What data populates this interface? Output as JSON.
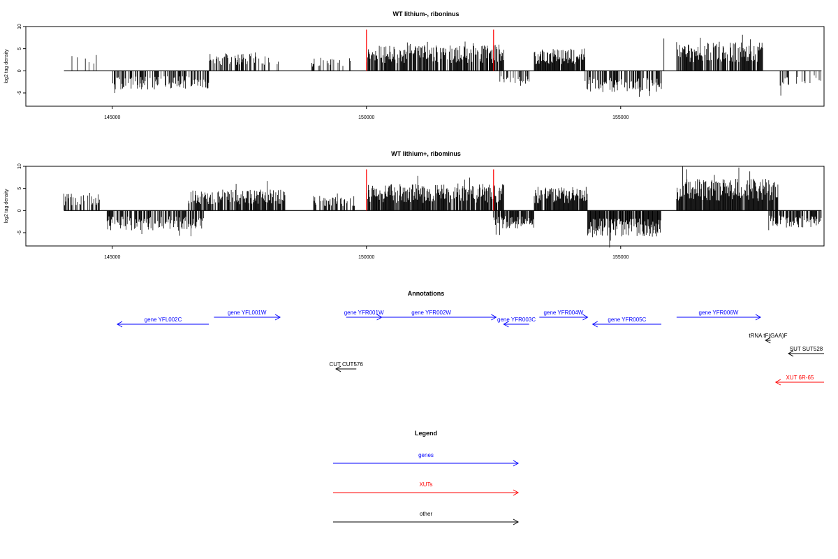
{
  "colors": {
    "genes": "#0000ff",
    "xuts": "#ff0000",
    "other": "#000000",
    "marker": "#ff0000"
  },
  "chart_data": [
    {
      "type": "bar",
      "title": "WT lithium-, riboninus",
      "ylabel": "log2 tag density",
      "xlim": [
        143300,
        159000
      ],
      "ylim": [
        -8,
        10
      ],
      "xticks": [
        145000,
        150000,
        155000
      ],
      "yticks": [
        10,
        5,
        0,
        -5
      ],
      "grid": false,
      "markers_x": [
        150000,
        152500
      ],
      "regions": [
        {
          "from": 144050,
          "to": 144700,
          "amp": 3.0,
          "density": 0.1
        },
        {
          "from": 145000,
          "to": 146900,
          "amp": -3.5,
          "density": 0.6
        },
        {
          "from": 146900,
          "to": 148300,
          "amp": 3.5,
          "density": 0.55
        },
        {
          "from": 148900,
          "to": 149700,
          "amp": 2.5,
          "density": 0.3
        },
        {
          "from": 150000,
          "to": 152700,
          "amp": 4.8,
          "density": 0.8
        },
        {
          "from": 152600,
          "to": 153200,
          "amp": -2.5,
          "density": 0.5
        },
        {
          "from": 153300,
          "to": 154300,
          "amp": 4.2,
          "density": 0.9
        },
        {
          "from": 154300,
          "to": 155800,
          "amp": -4.0,
          "density": 0.7
        },
        {
          "from": 156100,
          "to": 157800,
          "amp": 5.5,
          "density": 0.8
        },
        {
          "from": 158100,
          "to": 158950,
          "amp": -2.8,
          "density": 0.2
        }
      ],
      "spikes": [
        {
          "x": 155850,
          "v": 7.3
        },
        {
          "x": 158150,
          "v": -5.6
        },
        {
          "x": 145050,
          "v": -5.0
        },
        {
          "x": 151940,
          "v": 6.6
        }
      ]
    },
    {
      "type": "bar",
      "title": "WT lithium+, ribominus",
      "ylabel": "log2 tag density",
      "xlim": [
        143300,
        159000
      ],
      "ylim": [
        -8,
        10
      ],
      "xticks": [
        145000,
        150000,
        155000
      ],
      "yticks": [
        10,
        5,
        0,
        -5
      ],
      "grid": false,
      "markers_x": [
        150000,
        152500
      ],
      "regions": [
        {
          "from": 144050,
          "to": 144750,
          "amp": 3.2,
          "density": 0.6
        },
        {
          "from": 144850,
          "to": 146800,
          "amp": -3.8,
          "density": 0.65
        },
        {
          "from": 146500,
          "to": 148400,
          "amp": 4.0,
          "density": 0.8
        },
        {
          "from": 148900,
          "to": 149800,
          "amp": 2.8,
          "density": 0.5
        },
        {
          "from": 150000,
          "to": 152700,
          "amp": 5.0,
          "density": 0.85
        },
        {
          "from": 152500,
          "to": 153300,
          "amp": -3.5,
          "density": 0.85
        },
        {
          "from": 153300,
          "to": 154350,
          "amp": 4.5,
          "density": 0.95
        },
        {
          "from": 154350,
          "to": 155800,
          "amp": -5.0,
          "density": 0.95
        },
        {
          "from": 156100,
          "to": 158100,
          "amp": 6.0,
          "density": 0.95
        },
        {
          "from": 157900,
          "to": 158950,
          "amp": -3.2,
          "density": 0.7
        }
      ],
      "spikes": [
        {
          "x": 156300,
          "v": 9.3
        },
        {
          "x": 146550,
          "v": -5.8
        },
        {
          "x": 154800,
          "v": -6.8
        },
        {
          "x": 151930,
          "v": 7.0
        }
      ]
    }
  ],
  "annotations": {
    "title": "Annotations",
    "features": [
      {
        "label": "gene YFL002C",
        "start": 146900,
        "end": 145100,
        "row": 1,
        "kind": "genes"
      },
      {
        "label": "gene YFL001W",
        "start": 147000,
        "end": 148300,
        "row": 0,
        "kind": "genes"
      },
      {
        "label": "gene YFR001W",
        "start": 149600,
        "end": 150300,
        "row": 0,
        "kind": "genes"
      },
      {
        "label": "gene YFR002W",
        "start": 150000,
        "end": 152550,
        "row": 0,
        "kind": "genes"
      },
      {
        "label": "gene YFR003C",
        "start": 153200,
        "end": 152700,
        "row": 1,
        "kind": "genes"
      },
      {
        "label": "gene YFR004W",
        "start": 153400,
        "end": 154350,
        "row": 0,
        "kind": "genes"
      },
      {
        "label": "gene YFR005C",
        "start": 155800,
        "end": 154450,
        "row": 1,
        "kind": "genes"
      },
      {
        "label": "gene YFR006W",
        "start": 156100,
        "end": 157750,
        "row": 0,
        "kind": "genes"
      },
      {
        "label": "tRNA tF(GAA)F",
        "start": 157950,
        "end": 157850,
        "row": 2,
        "kind": "other"
      },
      {
        "label": "SUT SUT528",
        "start": 159000,
        "end": 158300,
        "row": 3,
        "kind": "other"
      },
      {
        "label": "CUT CUT576",
        "start": 149800,
        "end": 149400,
        "row": 4,
        "kind": "other"
      },
      {
        "label": "XUT 6R-65",
        "start": 159000,
        "end": 158050,
        "row": 5,
        "kind": "xuts"
      }
    ]
  },
  "legend": {
    "title": "Legend",
    "items": [
      {
        "label": "genes",
        "kind": "genes"
      },
      {
        "label": "XUTs",
        "kind": "xuts"
      },
      {
        "label": "other",
        "kind": "other"
      }
    ]
  }
}
